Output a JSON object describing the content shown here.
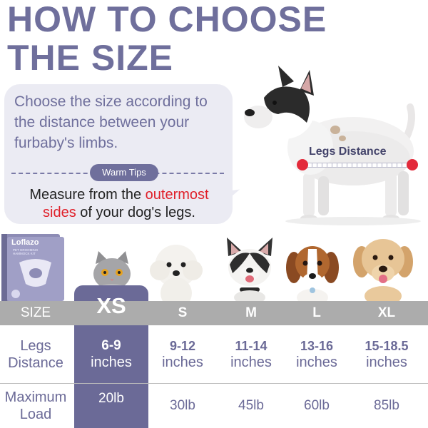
{
  "title": {
    "line1": "HOW TO CHOOSE",
    "line2": "THE SIZE"
  },
  "tip": {
    "main_text": "Choose the size according to the distance between your furbaby's limbs.",
    "pill": "Warm Tips",
    "note_before": "Measure from the ",
    "note_highlight1": "outermost",
    "note_highlight2": "sides",
    "note_after": " of your dog's legs."
  },
  "diagram": {
    "measure_label": "Legs Distance"
  },
  "product": {
    "brand": "Loflazo",
    "subtitle": "PET GROOMING HAMMOCK KIT"
  },
  "colors": {
    "brand_purple": "#6f6f9c",
    "highlight_red": "#e0202a",
    "header_gray": "#acacac",
    "dot_red": "#e32a3a"
  },
  "table": {
    "header_label": "SIZE",
    "legs_label_line1": "Legs",
    "legs_label_line2": "Distance",
    "load_label_line1": "Maximum",
    "load_label_line2": "Load",
    "sizes": [
      "XS",
      "S",
      "M",
      "L",
      "XL"
    ],
    "legs": [
      {
        "range": "6-9",
        "unit": "inches"
      },
      {
        "range": "9-12",
        "unit": "inches"
      },
      {
        "range": "11-14",
        "unit": "inches"
      },
      {
        "range": "13-16",
        "unit": "inches"
      },
      {
        "range": "15-18.5",
        "unit": "inches"
      }
    ],
    "loads": [
      "20lb",
      "30lb",
      "45lb",
      "60lb",
      "85lb"
    ]
  }
}
